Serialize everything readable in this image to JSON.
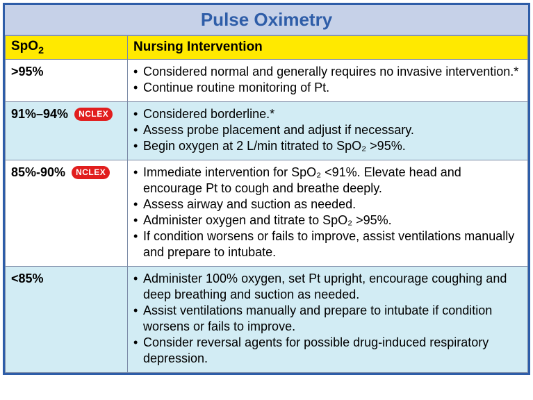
{
  "colors": {
    "frame_border": "#2e5da8",
    "title_bg": "#c6d1e8",
    "title_text": "#2e5da8",
    "header_bg": "#ffe900",
    "cell_border": "#7b8aa6",
    "row_white": "#ffffff",
    "row_blue": "#d2ecf4",
    "badge_bg": "#e11e1e",
    "badge_text": "#ffffff"
  },
  "table": {
    "type": "table",
    "title": "Pulse Oximetry",
    "columns": {
      "spo2_label": "SpO",
      "spo2_sub": "2",
      "intervention_label": "Nursing Intervention"
    },
    "badge_text": "NCLEX",
    "rows": [
      {
        "spo2": ">95%",
        "has_badge": false,
        "row_bg": "white",
        "bullets": [
          "Considered normal and generally requires no invasive intervention.*",
          "Continue routine monitoring of Pt."
        ]
      },
      {
        "spo2": "91%–94%",
        "has_badge": true,
        "row_bg": "blue",
        "bullets": [
          "Considered borderline.*",
          "Assess probe placement and adjust if necessary.",
          "Begin oxygen at 2 L/min titrated to SpO₂ >95%."
        ]
      },
      {
        "spo2": "85%-90%",
        "has_badge": true,
        "row_bg": "white",
        "bullets": [
          "Immediate intervention for SpO₂ <91%. Elevate head and encourage Pt to cough and breathe deeply.",
          "Assess airway and suction as needed.",
          "Administer oxygen and titrate to SpO₂ >95%.",
          "If condition worsens or fails to improve, assist ventilations manually and prepare to intubate."
        ]
      },
      {
        "spo2": "<85%",
        "has_badge": false,
        "row_bg": "blue",
        "bullets": [
          "Administer 100% oxygen, set Pt upright, encourage coughing and deep breathing and suction as needed.",
          "Assist ventilations manually and prepare to intubate if condition worsens or fails to improve.",
          "Consider reversal agents for possible drug-induced respiratory depression."
        ]
      }
    ]
  }
}
